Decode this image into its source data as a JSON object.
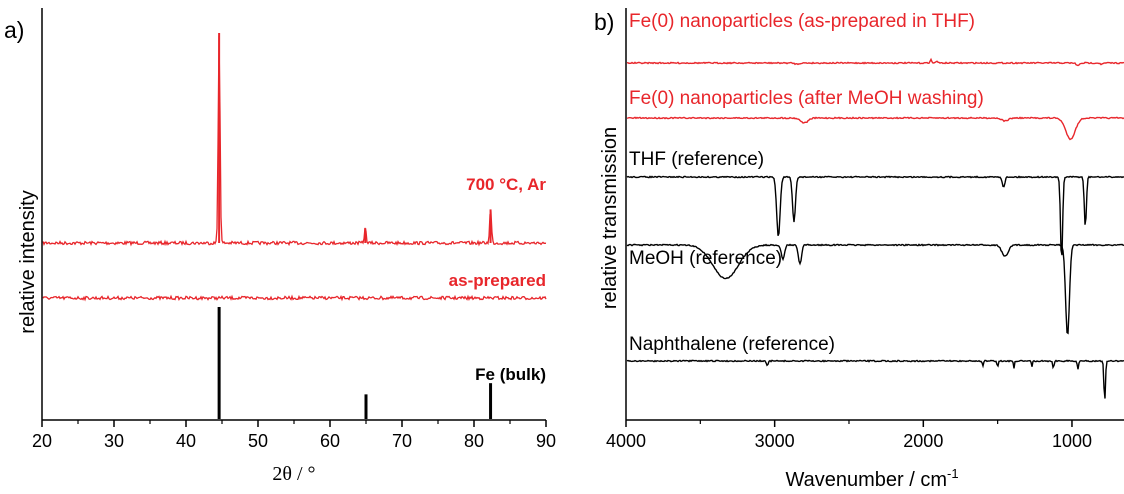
{
  "chart_data": [
    {
      "panel": "a)",
      "type": "line",
      "xlabel": "2θ / °",
      "ylabel": "relative intensity",
      "xlim": [
        20,
        90
      ],
      "xticks": [
        20,
        30,
        40,
        50,
        60,
        70,
        80,
        90
      ],
      "grid": false,
      "series": [
        {
          "name": "700 °C, Ar",
          "color": "#e8262b",
          "kind": "pattern",
          "peaks": [
            {
              "x": 44.6,
              "height": 1.0
            },
            {
              "x": 64.9,
              "height": 0.07
            },
            {
              "x": 82.3,
              "height": 0.16
            }
          ]
        },
        {
          "name": "as-prepared",
          "color": "#e8262b",
          "kind": "noise",
          "peaks": []
        },
        {
          "name": "Fe (bulk)",
          "color": "#000000",
          "kind": "sticks",
          "sticks": [
            {
              "x": 44.6,
              "height": 1.0
            },
            {
              "x": 65.0,
              "height": 0.22
            },
            {
              "x": 82.3,
              "height": 0.32
            }
          ]
        }
      ]
    },
    {
      "panel": "b)",
      "type": "line",
      "xlabel": "Wavenumber / cm",
      "xlabel_sup": "-1",
      "ylabel": "relative transmission",
      "xlim": [
        4000,
        650
      ],
      "xticks": [
        4000,
        3000,
        2000,
        1000
      ],
      "grid": false,
      "series": [
        {
          "name": "Fe(0) nanoparticles (as-prepared in THF)",
          "color": "#e8262b",
          "bands": [
            {
              "x": 2850,
              "depth": 0.04,
              "width": 20
            },
            {
              "x": 1950,
              "depth": -0.12,
              "width": 8
            },
            {
              "x": 1910,
              "depth": -0.08,
              "width": 8
            },
            {
              "x": 960,
              "depth": 0.1,
              "width": 15
            },
            {
              "x": 800,
              "depth": 0.05,
              "width": 12
            }
          ]
        },
        {
          "name": "Fe(0) nanoparticles (after MeOH washing)",
          "color": "#e8262b",
          "bands": [
            {
              "x": 2800,
              "depth": 0.08,
              "width": 35
            },
            {
              "x": 1450,
              "depth": 0.05,
              "width": 30
            },
            {
              "x": 1010,
              "depth": 0.35,
              "width": 45
            }
          ]
        },
        {
          "name": "THF (reference)",
          "color": "#000000",
          "bands": [
            {
              "x": 2975,
              "depth": 0.6,
              "width": 16
            },
            {
              "x": 2870,
              "depth": 0.45,
              "width": 14
            },
            {
              "x": 1460,
              "depth": 0.1,
              "width": 12
            },
            {
              "x": 1070,
              "depth": 0.85,
              "width": 10
            },
            {
              "x": 910,
              "depth": 0.5,
              "width": 10
            }
          ]
        },
        {
          "name": "MeOH (reference)",
          "color": "#000000",
          "bands": [
            {
              "x": 3330,
              "depth": 0.35,
              "width": 120
            },
            {
              "x": 2945,
              "depth": 0.15,
              "width": 15
            },
            {
              "x": 2830,
              "depth": 0.2,
              "width": 15
            },
            {
              "x": 1450,
              "depth": 0.12,
              "width": 30
            },
            {
              "x": 1030,
              "depth": 0.95,
              "width": 18
            }
          ]
        },
        {
          "name": "Naphthalene (reference)",
          "color": "#000000",
          "bands": [
            {
              "x": 3050,
              "depth": 0.12,
              "width": 8
            },
            {
              "x": 1600,
              "depth": 0.12,
              "width": 5
            },
            {
              "x": 1500,
              "depth": 0.15,
              "width": 5
            },
            {
              "x": 1390,
              "depth": 0.18,
              "width": 5
            },
            {
              "x": 1270,
              "depth": 0.15,
              "width": 5
            },
            {
              "x": 1125,
              "depth": 0.2,
              "width": 5
            },
            {
              "x": 960,
              "depth": 0.2,
              "width": 6
            },
            {
              "x": 780,
              "depth": 1.0,
              "width": 7
            }
          ]
        }
      ]
    }
  ]
}
